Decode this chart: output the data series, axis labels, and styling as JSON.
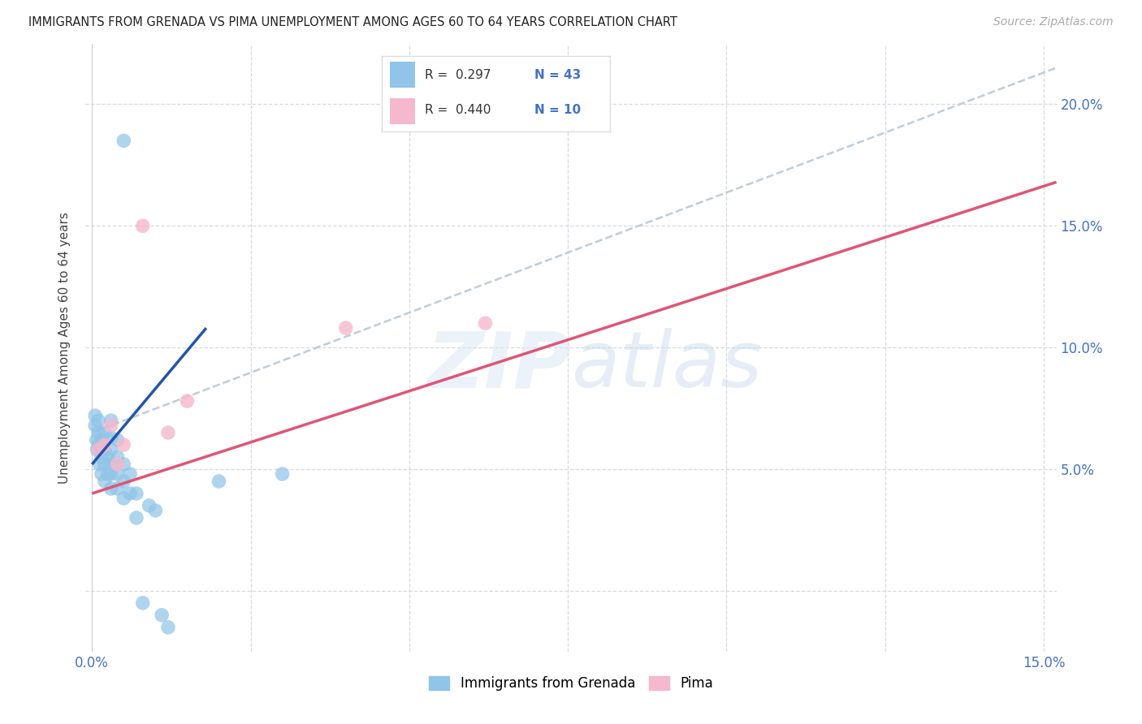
{
  "title": "IMMIGRANTS FROM GRENADA VS PIMA UNEMPLOYMENT AMONG AGES 60 TO 64 YEARS CORRELATION CHART",
  "source": "Source: ZipAtlas.com",
  "ylabel": "Unemployment Among Ages 60 to 64 years",
  "xlim": [
    -0.001,
    0.152
  ],
  "ylim": [
    -0.025,
    0.225
  ],
  "blue_color": "#90c4e8",
  "pink_color": "#f5b8cc",
  "blue_line_color": "#2255aa",
  "pink_line_color": "#e05575",
  "dashed_line_color": "#c0ccd8",
  "grid_color": "#d5dae2",
  "legend_label_blue": "Immigrants from Grenada",
  "legend_label_pink": "Pima",
  "blue_scatter_x": [
    0.0005,
    0.0005,
    0.0007,
    0.0008,
    0.001,
    0.001,
    0.001,
    0.0012,
    0.0012,
    0.0015,
    0.0015,
    0.0015,
    0.002,
    0.002,
    0.002,
    0.002,
    0.0025,
    0.0025,
    0.003,
    0.003,
    0.003,
    0.003,
    0.003,
    0.003,
    0.004,
    0.004,
    0.004,
    0.004,
    0.005,
    0.005,
    0.005,
    0.006,
    0.006,
    0.007,
    0.007,
    0.008,
    0.009,
    0.01,
    0.011,
    0.012,
    0.02,
    0.03,
    0.005
  ],
  "blue_scatter_y": [
    0.068,
    0.072,
    0.062,
    0.058,
    0.065,
    0.07,
    0.06,
    0.052,
    0.058,
    0.048,
    0.055,
    0.062,
    0.045,
    0.052,
    0.058,
    0.065,
    0.048,
    0.055,
    0.042,
    0.048,
    0.052,
    0.058,
    0.063,
    0.07,
    0.042,
    0.048,
    0.055,
    0.062,
    0.038,
    0.045,
    0.052,
    0.04,
    0.048,
    0.03,
    0.04,
    -0.005,
    0.035,
    0.033,
    -0.01,
    -0.015,
    0.045,
    0.048,
    0.185
  ],
  "pink_scatter_x": [
    0.001,
    0.002,
    0.003,
    0.004,
    0.005,
    0.008,
    0.012,
    0.015,
    0.062,
    0.04
  ],
  "pink_scatter_y": [
    0.058,
    0.06,
    0.068,
    0.052,
    0.06,
    0.15,
    0.065,
    0.078,
    0.11,
    0.108
  ],
  "blue_line_x": [
    0.0,
    0.018
  ],
  "blue_line_y": [
    0.052,
    0.108
  ],
  "pink_line_x": [
    0.0,
    0.152
  ],
  "pink_line_y": [
    0.04,
    0.168
  ],
  "dashed_line_x": [
    0.0,
    0.152
  ],
  "dashed_line_y": [
    0.065,
    0.215
  ]
}
